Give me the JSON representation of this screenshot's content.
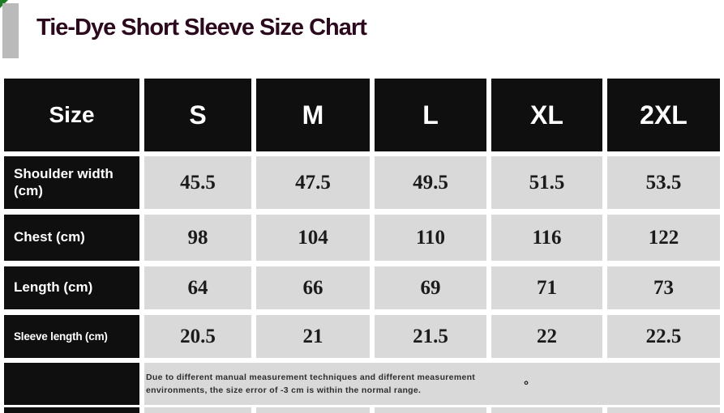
{
  "title": "Tie-Dye Short Sleeve Size Chart",
  "colors": {
    "header_bg": "#0f0f0f",
    "value_cell_bg": "#d9d9d9",
    "title_text": "#2b0a1e",
    "corner_green": "#1e7a23",
    "title_bar_gray": "#bababa",
    "value_text": "#1b1b1b",
    "note_text": "#2e2e2e"
  },
  "chart_data": {
    "type": "table",
    "title": "Tie-Dye Short Sleeve Size Chart",
    "columns": [
      "Size",
      "S",
      "M",
      "L",
      "XL",
      "2XL"
    ],
    "rows": [
      {
        "label": "Shoulder width (cm)",
        "values": [
          "45.5",
          "47.5",
          "49.5",
          "51.5",
          "53.5"
        ]
      },
      {
        "label": "Chest (cm)",
        "values": [
          "98",
          "104",
          "110",
          "116",
          "122"
        ]
      },
      {
        "label": "Length (cm)",
        "values": [
          "64",
          "66",
          "69",
          "71",
          "73"
        ]
      },
      {
        "label": "Sleeve length (cm)",
        "values": [
          "20.5",
          "21",
          "21.5",
          "22",
          "22.5"
        ]
      }
    ],
    "note": "Due to different manual measurement techniques and different measurement environments, the size error of -3 cm is within the normal range.",
    "note_mark": "°"
  }
}
